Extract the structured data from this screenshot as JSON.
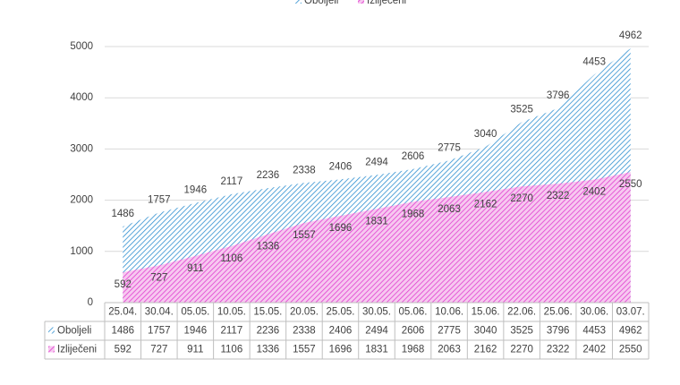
{
  "chart_data": {
    "type": "area",
    "categories": [
      "25.04.",
      "30.04.",
      "05.05.",
      "10.05.",
      "15.05.",
      "20.05.",
      "25.05.",
      "30.05.",
      "05.06.",
      "10.06.",
      "15.06.",
      "22.06.",
      "25.06.",
      "30.06.",
      "03.07."
    ],
    "series": [
      {
        "name": "Oboljeli",
        "color": "#2e8fd0",
        "values": [
          1486,
          1757,
          1946,
          2117,
          2236,
          2338,
          2406,
          2494,
          2606,
          2775,
          3040,
          3525,
          3796,
          4453,
          4962
        ]
      },
      {
        "name": "Izliječeni",
        "color": "#e040d0",
        "values": [
          592,
          727,
          911,
          1106,
          1336,
          1557,
          1696,
          1831,
          1968,
          2063,
          2162,
          2270,
          2322,
          2402,
          2550
        ]
      }
    ],
    "ylim": [
      0,
      5000
    ],
    "yticks": [
      0,
      1000,
      2000,
      3000,
      4000,
      5000
    ],
    "grid": true
  }
}
